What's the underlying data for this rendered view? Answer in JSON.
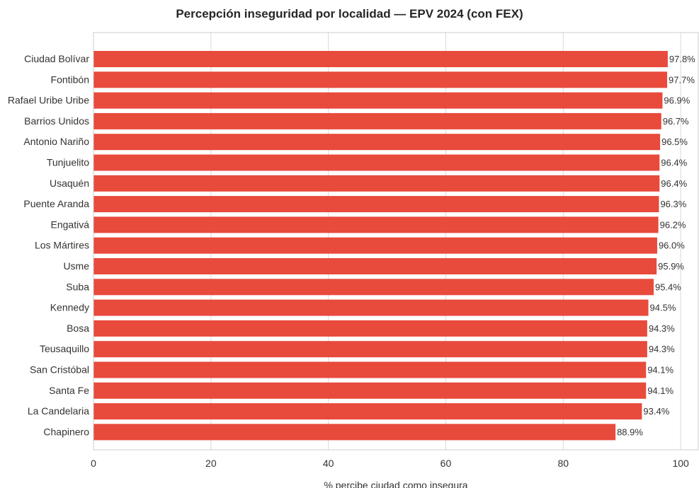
{
  "chart_data": {
    "type": "bar",
    "orientation": "horizontal",
    "title": "Percepción inseguridad por localidad — EPV 2024 (con FEX)",
    "xlabel": "% percibe ciudad como insegura",
    "ylabel": "",
    "xlim": [
      0,
      103
    ],
    "xticks": [
      0,
      20,
      40,
      60,
      80,
      100
    ],
    "grid": true,
    "bar_color": "#e84a3c",
    "categories": [
      "Ciudad Bolívar",
      "Fontibón",
      "Rafael Uribe Uribe",
      "Barrios Unidos",
      "Antonio Nariño",
      "Tunjuelito",
      "Usaquén",
      "Puente Aranda",
      "Engativá",
      "Los Mártires",
      "Usme",
      "Suba",
      "Kennedy",
      "Bosa",
      "Teusaquillo",
      "San Cristóbal",
      "Santa Fe",
      "La Candelaria",
      "Chapinero"
    ],
    "values": [
      97.8,
      97.7,
      96.9,
      96.7,
      96.5,
      96.4,
      96.4,
      96.3,
      96.2,
      96.0,
      95.9,
      95.4,
      94.5,
      94.3,
      94.3,
      94.1,
      94.1,
      93.4,
      88.9
    ],
    "value_labels": [
      "97.8%",
      "97.7%",
      "96.9%",
      "96.7%",
      "96.5%",
      "96.4%",
      "96.4%",
      "96.3%",
      "96.2%",
      "96.0%",
      "95.9%",
      "95.4%",
      "94.5%",
      "94.3%",
      "94.3%",
      "94.1%",
      "94.1%",
      "93.4%",
      "88.9%"
    ]
  }
}
